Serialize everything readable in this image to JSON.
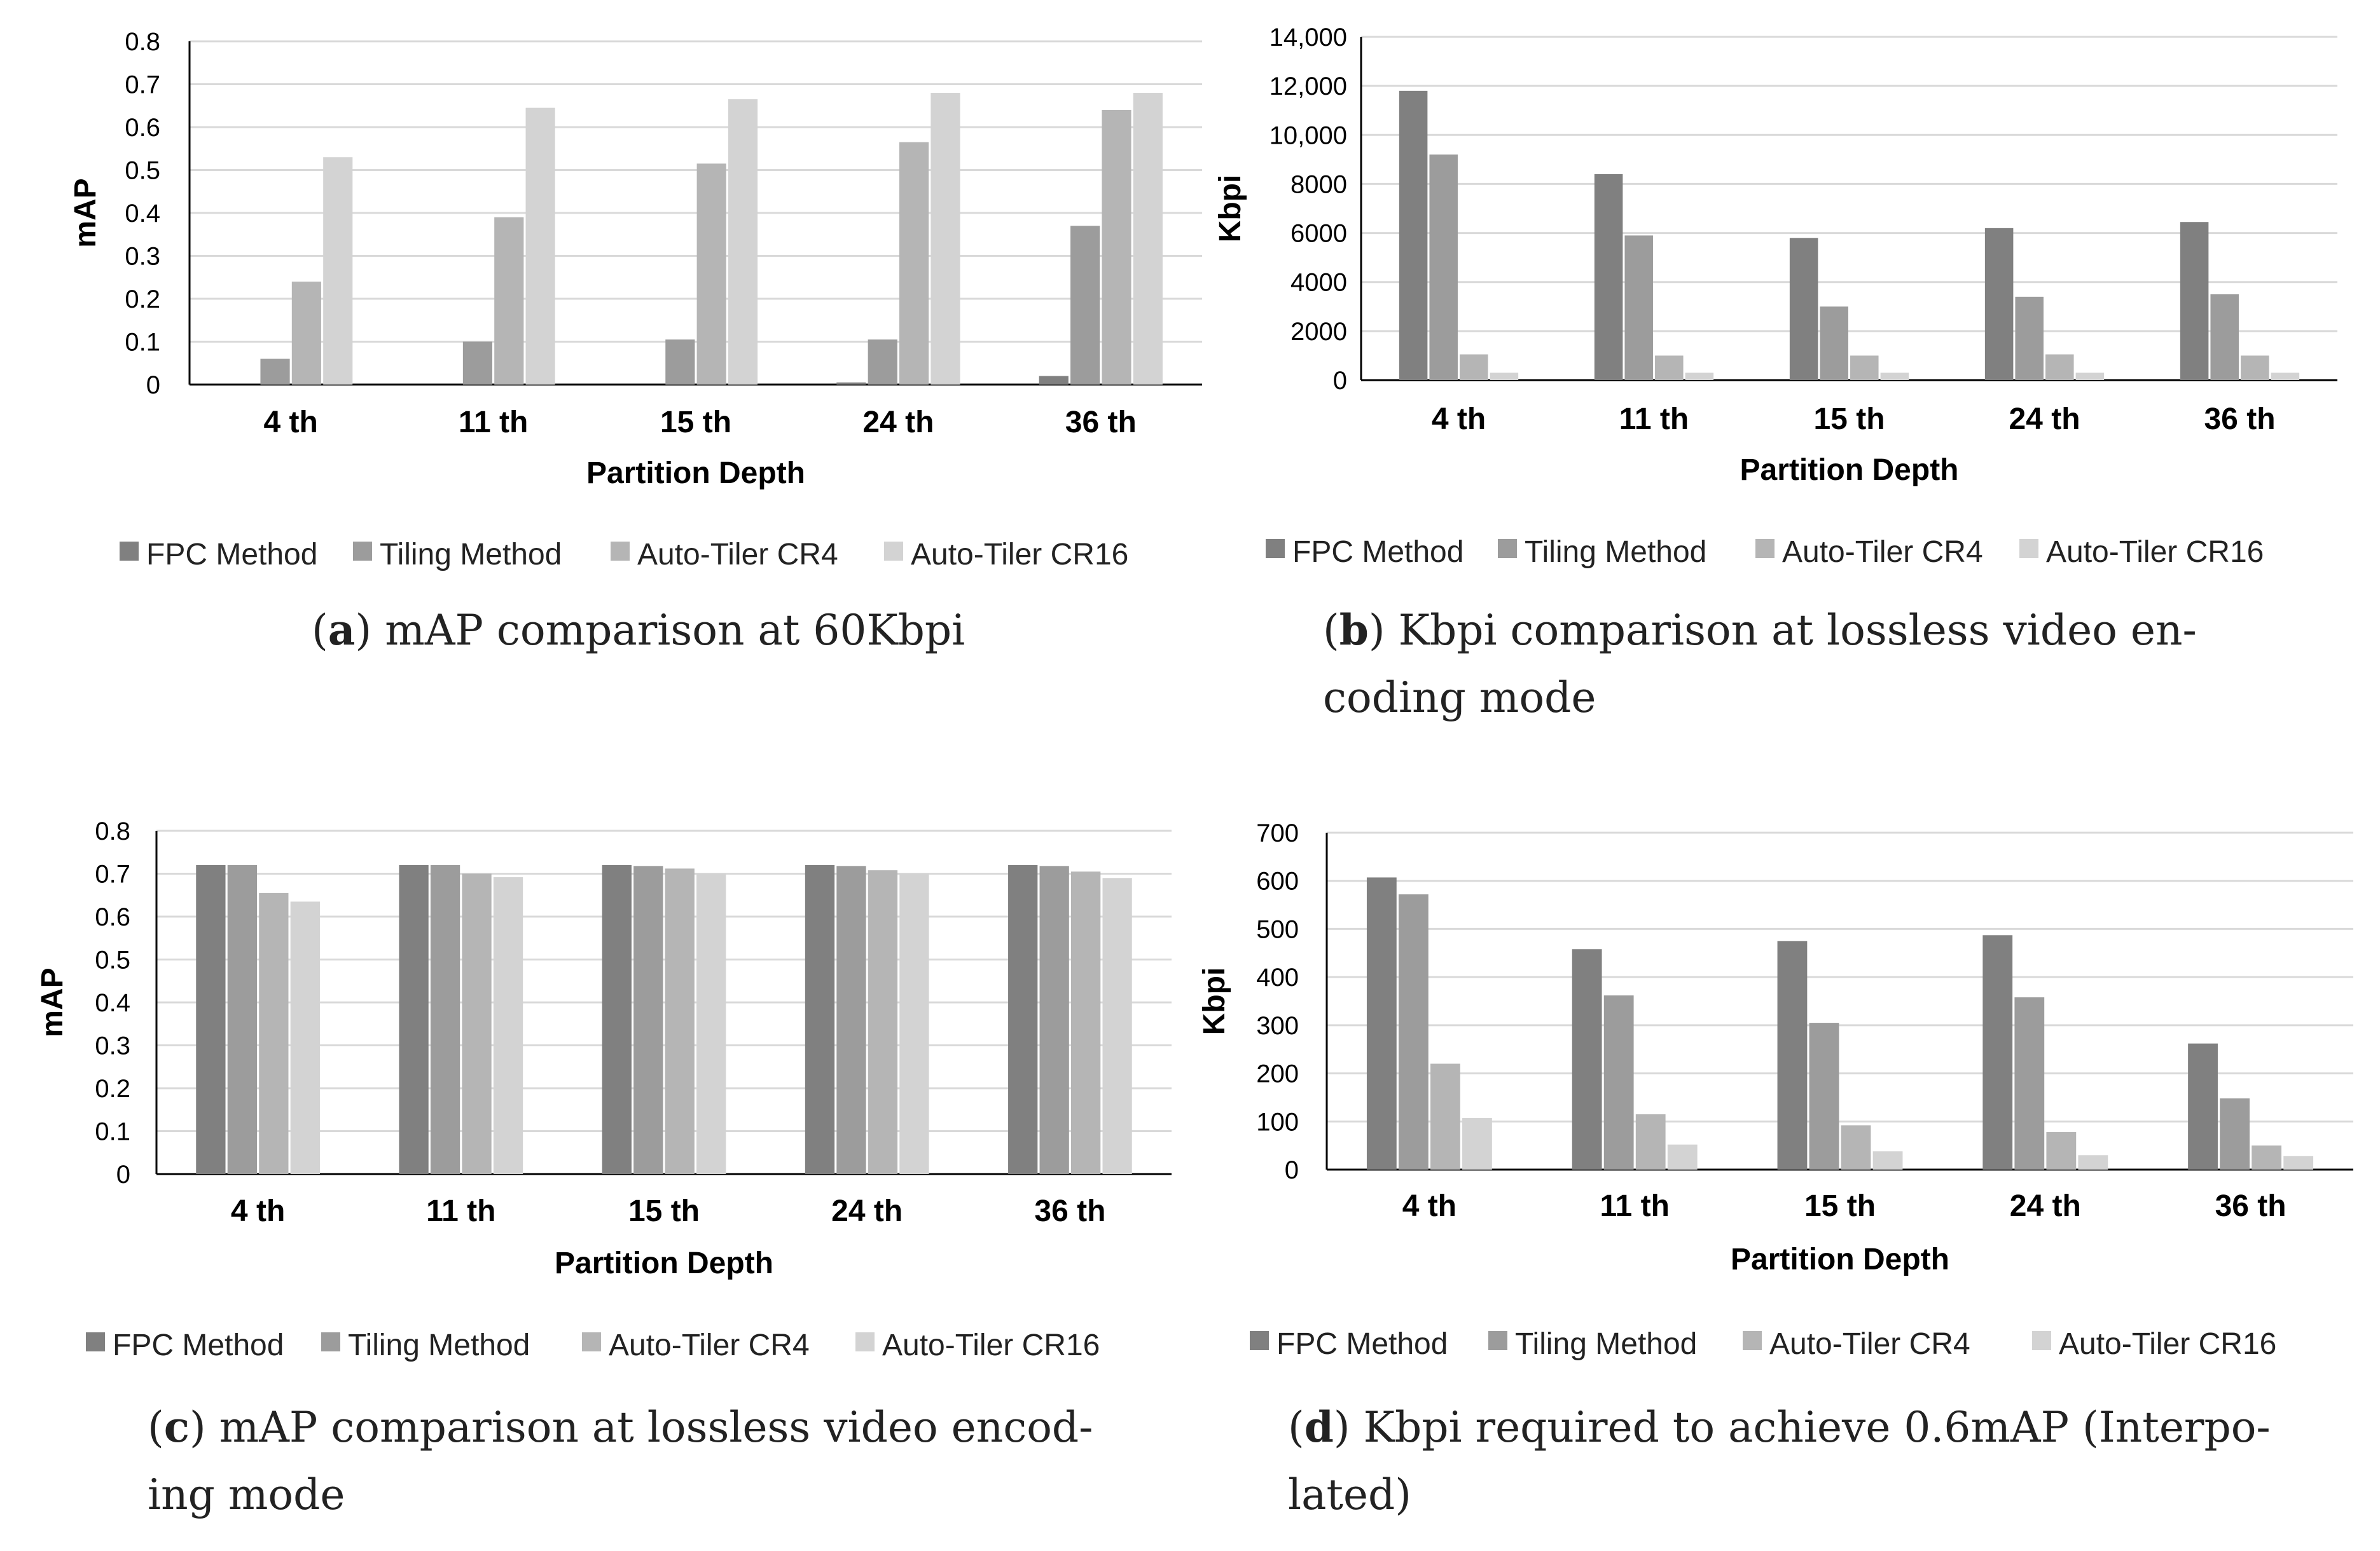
{
  "colors": {
    "FPC Method": "#808080",
    "Tiling Method": "#9c9c9c",
    "Auto-Tiler CR4": "#b5b5b5",
    "Auto-Tiler CR16": "#d3d3d3",
    "grid": "#d9d9d9",
    "axis": "#000000"
  },
  "chart_data": [
    {
      "type": "bar",
      "id": "a",
      "categories": [
        "4 th",
        "11 th",
        "15 th",
        "24 th",
        "36 th"
      ],
      "series": [
        {
          "name": "FPC Method",
          "values": [
            0,
            0,
            0,
            0.005,
            0.02
          ]
        },
        {
          "name": "Tiling Method",
          "values": [
            0.06,
            0.1,
            0.105,
            0.105,
            0.37
          ]
        },
        {
          "name": "Auto-Tiler CR4",
          "values": [
            0.24,
            0.39,
            0.515,
            0.565,
            0.64
          ]
        },
        {
          "name": "Auto-Tiler CR16",
          "values": [
            0.53,
            0.645,
            0.665,
            0.68,
            0.68
          ]
        }
      ],
      "yticks": [
        "0",
        "0.1",
        "0.2",
        "0.3",
        "0.4",
        "0.5",
        "0.6",
        "0.7",
        "0.8"
      ],
      "ylim": [
        0,
        0.8
      ],
      "ylabel": "mAP",
      "xlabel": "Partition Depth",
      "legend": [
        "FPC Method",
        "Tiling Method",
        "Auto-Tiler CR4",
        "Auto-Tiler CR16"
      ],
      "legend_position": "bottom",
      "grid": true,
      "caption_label": "a",
      "caption_lines": [
        "mAP comparison at 60Kbpi"
      ]
    },
    {
      "type": "bar",
      "id": "b",
      "categories": [
        "4 th",
        "11 th",
        "15 th",
        "24 th",
        "36 th"
      ],
      "series": [
        {
          "name": "FPC Method",
          "values": [
            11800,
            8400,
            5800,
            6200,
            6450
          ]
        },
        {
          "name": "Tiling Method",
          "values": [
            9200,
            5900,
            3000,
            3400,
            3500
          ]
        },
        {
          "name": "Auto-Tiler CR4",
          "values": [
            1050,
            1000,
            1000,
            1050,
            1000
          ]
        },
        {
          "name": "Auto-Tiler CR16",
          "values": [
            300,
            300,
            300,
            300,
            300
          ]
        }
      ],
      "yticks": [
        "0",
        "2000",
        "4000",
        "6000",
        "8000",
        "10,000",
        "12,000",
        "14,000"
      ],
      "ylim": [
        0,
        14000
      ],
      "ylabel": "Kbpi",
      "xlabel": "Partition Depth",
      "legend": [
        "FPC Method",
        "Tiling Method",
        "Auto-Tiler CR4",
        "Auto-Tiler CR16"
      ],
      "legend_position": "bottom",
      "grid": true,
      "caption_label": "b",
      "caption_lines": [
        "Kbpi comparison at lossless video en-",
        "coding mode"
      ]
    },
    {
      "type": "bar",
      "id": "c",
      "categories": [
        "4 th",
        "11 th",
        "15 th",
        "24 th",
        "36 th"
      ],
      "series": [
        {
          "name": "FPC Method",
          "values": [
            0.72,
            0.72,
            0.72,
            0.72,
            0.72
          ]
        },
        {
          "name": "Tiling Method",
          "values": [
            0.72,
            0.72,
            0.718,
            0.718,
            0.718
          ]
        },
        {
          "name": "Auto-Tiler CR4",
          "values": [
            0.655,
            0.7,
            0.712,
            0.708,
            0.705
          ]
        },
        {
          "name": "Auto-Tiler CR16",
          "values": [
            0.635,
            0.692,
            0.7,
            0.7,
            0.69
          ]
        }
      ],
      "yticks": [
        "0",
        "0.1",
        "0.2",
        "0.3",
        "0.4",
        "0.5",
        "0.6",
        "0.7",
        "0.8"
      ],
      "ylim": [
        0,
        0.8
      ],
      "ylabel": "mAP",
      "xlabel": "Partition Depth",
      "legend": [
        "FPC Method",
        "Tiling Method",
        "Auto-Tiler CR4",
        "Auto-Tiler CR16"
      ],
      "legend_position": "bottom",
      "grid": true,
      "caption_label": "c",
      "caption_lines": [
        "mAP comparison at lossless video encod-",
        "ing mode"
      ]
    },
    {
      "type": "bar",
      "id": "d",
      "categories": [
        "4 th",
        "11 th",
        "15 th",
        "24 th",
        "36 th"
      ],
      "series": [
        {
          "name": "FPC Method",
          "values": [
            607,
            458,
            475,
            487,
            262
          ]
        },
        {
          "name": "Tiling Method",
          "values": [
            572,
            362,
            305,
            358,
            148
          ]
        },
        {
          "name": "Auto-Tiler CR4",
          "values": [
            220,
            115,
            92,
            78,
            50
          ]
        },
        {
          "name": "Auto-Tiler CR16",
          "values": [
            107,
            52,
            38,
            30,
            28
          ]
        }
      ],
      "yticks": [
        "0",
        "100",
        "200",
        "300",
        "400",
        "500",
        "600",
        "700"
      ],
      "ylim": [
        0,
        700
      ],
      "ylabel": "Kbpi",
      "xlabel": "Partition Depth",
      "legend": [
        "FPC Method",
        "Tiling Method",
        "Auto-Tiler CR4",
        "Auto-Tiler CR16"
      ],
      "legend_position": "bottom",
      "grid": true,
      "caption_label": "d",
      "caption_lines": [
        "Kbpi required to achieve 0.6mAP (Interpo-",
        "lated)"
      ]
    }
  ]
}
